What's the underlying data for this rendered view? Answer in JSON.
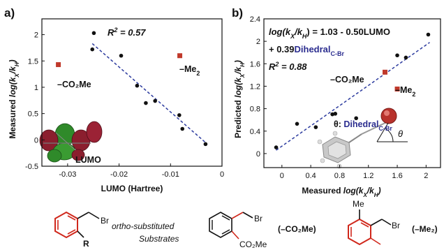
{
  "panels": {
    "a": {
      "label": "a)",
      "ylabel_main": "Measured ",
      "ylabel_math": "log(k",
      "ylabel_sub1": "X",
      "ylabel_mid": "/k",
      "ylabel_sub2": "H",
      "ylabel_end": ")",
      "xlabel": "LUMO (Hartree)",
      "r2_text": "R",
      "r2_sup": "2",
      "r2_value": " = 0.57",
      "anno_co2me": "–CO₂Me",
      "anno_me2": "–Me",
      "anno_me2_sub": "2",
      "orbital_label": "LUMO"
    },
    "b": {
      "label": "b)",
      "ylabel_main": "Predicted ",
      "ylabel_math": "log(k",
      "ylabel_sub1": "X",
      "ylabel_mid": "/k",
      "ylabel_sub2": "H",
      "ylabel_end": ")",
      "xlabel_main": "Measured ",
      "xlabel_math": "log(k",
      "xlabel_sub1": "X",
      "xlabel_mid": "/k",
      "xlabel_sub2": "H",
      "xlabel_end": ")",
      "eq_line1_a": "log(k",
      "eq_line1_sub1": "X",
      "eq_line1_b": "/k",
      "eq_line1_sub2": "H",
      "eq_line1_c": ") = 1.03 - 0.50LUMO",
      "eq_line2_a": "+ 0.39",
      "eq_line2_b": "Dihedral",
      "eq_line2_sub": "C-Br",
      "r2_text": "R",
      "r2_sup": "2",
      "r2_value": " = 0.88",
      "anno_co2me": "–CO₂Me",
      "anno_me2": "–Me",
      "anno_me2_sub": "2",
      "theta_label_a": "θ: ",
      "theta_label_b": "Dihedral",
      "theta_label_sub": "C-Br",
      "theta_symbol": "θ"
    }
  },
  "structures": {
    "s1_br": "Br",
    "s1_caption_a": "ortho-substituted",
    "s1_caption_b": "Substrates",
    "s1_r": "R",
    "s2_br": "Br",
    "s2_co2me": "CO₂Me",
    "s2_label": "(–CO₂Me)",
    "s3_me": "Me",
    "s3_br": "Br",
    "s3_label": "(–Me₂)"
  },
  "colors": {
    "black_point": "#111111",
    "red_point": "#c0392b",
    "fit_line": "#2b3a9e",
    "equation_blue": "#2b2d8f",
    "substituent_red": "#d0281c"
  },
  "chart_data": [
    {
      "type": "scatter",
      "title": "",
      "xlabel": "LUMO (Hartree)",
      "ylabel": "Measured log(kX/kH)",
      "xlim": [
        -0.035,
        0
      ],
      "ylim": [
        -0.5,
        2.3
      ],
      "xticks": [
        -0.03,
        -0.02,
        -0.01,
        0
      ],
      "yticks": [
        -0.5,
        0,
        0.5,
        1,
        1.5,
        2
      ],
      "xtick_labels": [
        "-0.03",
        "-0.02",
        "-0.01",
        "0"
      ],
      "ytick_labels": [
        "-0.5",
        "0",
        "0.5",
        "1",
        "1.5",
        "2"
      ],
      "series": [
        {
          "marker": "circle",
          "color": "#111111",
          "x": [
            -0.0249,
            -0.0252,
            -0.0196,
            -0.0165,
            -0.0148,
            -0.013,
            -0.0083,
            -0.0077,
            -0.0032
          ],
          "y": [
            2.03,
            1.72,
            1.6,
            1.03,
            0.7,
            0.74,
            0.47,
            0.21,
            -0.08
          ]
        },
        {
          "marker": "square",
          "color": "#c0392b",
          "x": [
            -0.0318,
            -0.0082
          ],
          "y": [
            1.43,
            1.6
          ]
        }
      ],
      "fit_line": {
        "x": [
          -0.0252,
          -0.0032
        ],
        "y": [
          1.83,
          -0.05
        ]
      },
      "r2": 0.57
    },
    {
      "type": "scatter",
      "title": "",
      "xlabel": "Measured log(kX/kH)",
      "ylabel": "Predicted log(kX/kH)",
      "xlim": [
        -0.25,
        2.2
      ],
      "ylim": [
        -0.25,
        2.4
      ],
      "xticks": [
        0,
        0.4,
        0.8,
        1.2,
        1.6,
        2
      ],
      "yticks": [
        0,
        0.4,
        0.8,
        1.2,
        1.6,
        2,
        2.4
      ],
      "xtick_labels": [
        "0",
        "0.4",
        "0.8",
        "1.2",
        "1.6",
        "2"
      ],
      "ytick_labels": [
        "0",
        "0.4",
        "0.8",
        "1.2",
        "1.6",
        "2",
        "2.4"
      ],
      "series": [
        {
          "marker": "circle",
          "color": "#111111",
          "x": [
            -0.08,
            0.21,
            0.47,
            0.7,
            0.74,
            1.03,
            1.6,
            1.72,
            2.03
          ],
          "y": [
            0.11,
            0.53,
            0.47,
            0.7,
            0.71,
            0.63,
            1.75,
            1.71,
            2.12
          ]
        },
        {
          "marker": "square",
          "color": "#c0392b",
          "x": [
            1.43,
            1.6
          ],
          "y": [
            1.45,
            1.15
          ]
        }
      ],
      "fit_line": {
        "x": [
          -0.08,
          2.05
        ],
        "y": [
          0.06,
          1.98
        ]
      },
      "r2": 0.88
    }
  ]
}
